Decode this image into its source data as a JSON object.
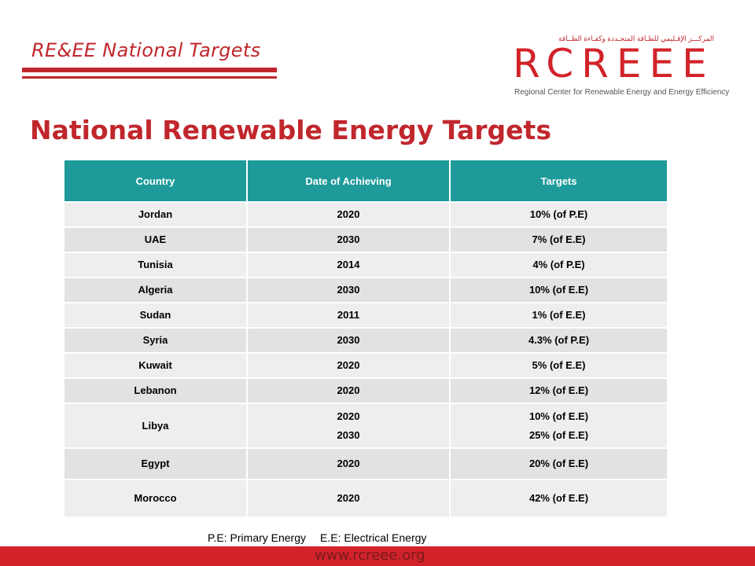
{
  "header": {
    "section_title": "RE&EE National Targets",
    "page_title": "National Renewable Energy Targets"
  },
  "logo": {
    "arabic_text": "المركـــز الإقـليمي للطـاقة المتجـددة وكفـاءة الطــاقة",
    "mark": "RCREEE",
    "tagline": "Regional Center for Renewable Energy and Energy Efficiency"
  },
  "table": {
    "headers": [
      "Country",
      "Date of Achieving",
      "Targets"
    ],
    "rows": [
      {
        "country": "Jordan",
        "dates": [
          "2020"
        ],
        "targets": [
          "10% (of  P.E)"
        ]
      },
      {
        "country": "UAE",
        "dates": [
          "2030"
        ],
        "targets": [
          "7% (of  E.E)"
        ]
      },
      {
        "country": "Tunisia",
        "dates": [
          "2014"
        ],
        "targets": [
          "4% (of  P.E)"
        ]
      },
      {
        "country": "Algeria",
        "dates": [
          "2030"
        ],
        "targets": [
          "10% (of  E.E)"
        ]
      },
      {
        "country": "Sudan",
        "dates": [
          "2011"
        ],
        "targets": [
          "1% (of  E.E)"
        ]
      },
      {
        "country": "Syria",
        "dates": [
          "2030"
        ],
        "targets": [
          "4.3% (of  P.E)"
        ]
      },
      {
        "country": "Kuwait",
        "dates": [
          "2020"
        ],
        "targets": [
          "5% (of  E.E)"
        ]
      },
      {
        "country": "Lebanon",
        "dates": [
          "2020"
        ],
        "targets": [
          "12% (of E.E)"
        ]
      },
      {
        "country": "Libya",
        "dates": [
          "2020",
          "2030"
        ],
        "targets": [
          "10% (of  E.E)",
          "25% (of  E.E)"
        ]
      },
      {
        "country": "Egypt",
        "dates": [
          "2020"
        ],
        "targets": [
          "20% (of  E.E)"
        ]
      },
      {
        "country": "Morocco",
        "dates": [
          "2020"
        ],
        "targets": [
          "42% (of  E.E)"
        ]
      }
    ]
  },
  "footnote": {
    "pe": "P.E: Primary Energy",
    "ee": "E.E: Electrical Energy"
  },
  "footer": {
    "url": "www.rcreee.org"
  },
  "colors": {
    "brand_red": "#c0272d",
    "header_teal": "#1e9a9a"
  }
}
